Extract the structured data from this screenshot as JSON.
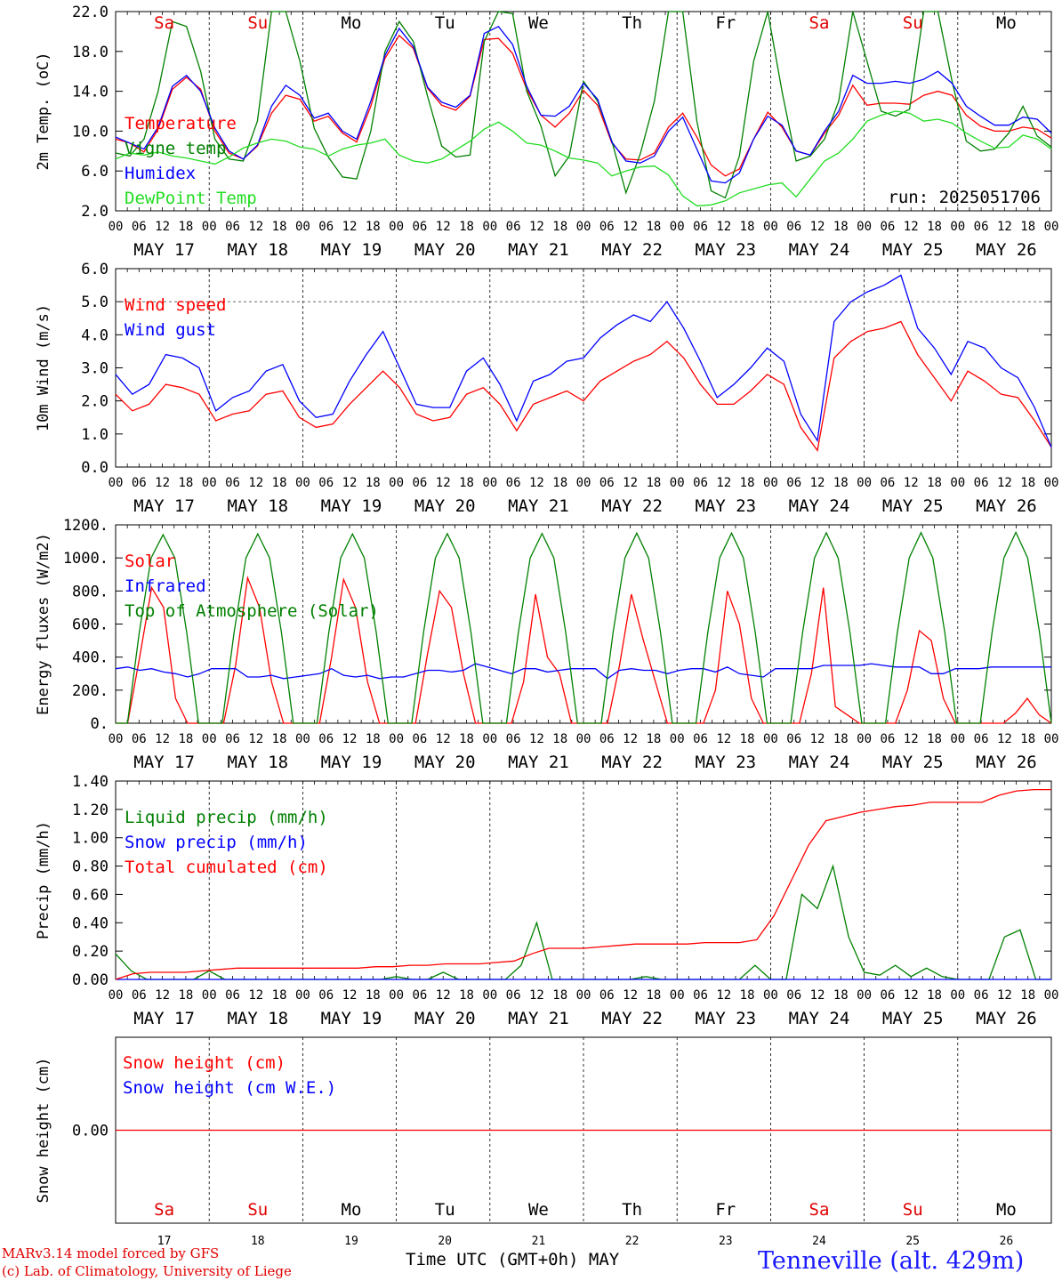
{
  "run_label": "run: 2025051706",
  "day_labels": [
    "MAY 17",
    "MAY 18",
    "MAY 19",
    "MAY 20",
    "MAY 21",
    "MAY 22",
    "MAY 23",
    "MAY 24",
    "MAY 25",
    "MAY 26"
  ],
  "hour_labels": [
    "00",
    "06",
    "12",
    "18"
  ],
  "final_hour_label": "00",
  "weekdays": [
    {
      "name": "Sa",
      "color": "#e00000"
    },
    {
      "name": "Su",
      "color": "#e00000"
    },
    {
      "name": "Mo",
      "color": "#000000"
    },
    {
      "name": "Tu",
      "color": "#000000"
    },
    {
      "name": "We",
      "color": "#000000"
    },
    {
      "name": "Th",
      "color": "#000000"
    },
    {
      "name": "Fr",
      "color": "#000000"
    },
    {
      "name": "Sa",
      "color": "#e00000"
    },
    {
      "name": "Su",
      "color": "#e00000"
    },
    {
      "name": "Mo",
      "color": "#000000"
    }
  ],
  "day_numbers": [
    "17",
    "18",
    "19",
    "20",
    "21",
    "22",
    "23",
    "24",
    "25",
    "26"
  ],
  "xlabel": "Time UTC (GMT+0h)",
  "month_label": "MAY",
  "footer": {
    "model": "MARv3.14 model forced by GFS",
    "credit": "(c) Lab. of Climatology, University of Liege",
    "station": "Tenneville (alt. 429m)"
  },
  "colors": {
    "red": "#ff0000",
    "green": "#008000",
    "blue": "#0000ff",
    "lightgreen": "#22dd22"
  },
  "chart_data": [
    {
      "type": "line",
      "ylabel": "2m Temp. (oC)",
      "ylim": [
        2,
        22
      ],
      "yticks": [
        "2.0",
        "6.0",
        "10.0",
        "14.0",
        "18.0",
        "22.0"
      ],
      "x_hours_step": 6,
      "series": [
        {
          "name": "Temperature",
          "color": "#ff0000",
          "values": [
            9.2,
            8.8,
            7.9,
            10.2,
            14.2,
            15.4,
            14.2,
            10.0,
            7.8,
            7.2,
            8.5,
            11.8,
            13.6,
            13.2,
            11.0,
            11.5,
            9.8,
            8.9,
            12.5,
            17.3,
            19.6,
            18.3,
            14.3,
            12.6,
            12.1,
            13.5,
            19.2,
            19.3,
            17.8,
            14.2,
            11.6,
            10.4,
            11.8,
            14.1,
            12.6,
            8.8,
            7.2,
            7.1,
            7.8,
            10.4,
            11.8,
            9.4,
            6.6,
            5.5,
            6.2,
            9.2,
            11.9,
            10.4,
            8.0,
            7.6,
            9.8,
            11.6,
            14.6,
            12.6,
            12.8,
            12.8,
            12.7,
            13.6,
            14.0,
            13.6,
            11.6,
            10.5,
            10.0,
            10.0,
            10.4,
            10.2,
            9.3
          ]
        },
        {
          "name": "Vigne temp",
          "color": "#008000",
          "values": [
            7.8,
            7.5,
            9.2,
            14.0,
            21.0,
            20.5,
            16.0,
            9.2,
            7.2,
            7.0,
            11.0,
            22.5,
            22.5,
            17.0,
            10.3,
            7.4,
            5.4,
            5.2,
            10.0,
            18.0,
            21.0,
            19.0,
            13.5,
            8.5,
            7.4,
            7.6,
            19.0,
            22.5,
            21.8,
            14.0,
            10.5,
            5.5,
            7.5,
            15.0,
            13.0,
            9.0,
            3.8,
            7.7,
            13.0,
            22.5,
            22.5,
            11.0,
            4.0,
            3.3,
            7.5,
            17.0,
            22.5,
            14.0,
            7.0,
            7.5,
            9.2,
            13.0,
            22.5,
            17.0,
            12.0,
            11.5,
            12.2,
            22.5,
            22.5,
            15.0,
            9.0,
            8.0,
            8.2,
            9.8,
            12.5,
            9.5,
            8.4
          ]
        },
        {
          "name": "Humidex",
          "color": "#0000ff",
          "values": [
            9.4,
            8.8,
            8.2,
            10.4,
            14.5,
            15.6,
            14.0,
            10.3,
            8.0,
            7.2,
            8.6,
            12.5,
            14.6,
            13.6,
            11.3,
            11.8,
            10.0,
            9.2,
            13.0,
            17.6,
            20.3,
            18.5,
            14.4,
            12.9,
            12.4,
            13.6,
            19.8,
            20.5,
            18.7,
            14.5,
            11.6,
            11.5,
            12.5,
            14.8,
            13.2,
            8.9,
            7.0,
            6.8,
            7.5,
            10.0,
            11.4,
            8.2,
            5.0,
            4.8,
            5.8,
            9.2,
            11.5,
            10.6,
            8.0,
            7.6,
            10.0,
            12.0,
            15.6,
            14.8,
            14.8,
            15.0,
            14.8,
            15.2,
            16.0,
            14.8,
            12.5,
            11.5,
            10.6,
            10.6,
            11.4,
            11.2,
            9.8
          ]
        },
        {
          "name": "DewPoint Temp",
          "color": "#22dd22",
          "values": [
            7.2,
            7.8,
            7.6,
            7.9,
            7.5,
            7.3,
            7.0,
            6.7,
            7.4,
            8.3,
            8.8,
            9.2,
            9.0,
            8.4,
            8.2,
            7.5,
            8.2,
            8.6,
            8.8,
            9.2,
            7.6,
            7.0,
            6.8,
            7.2,
            8.1,
            9.0,
            10.2,
            10.9,
            10.0,
            8.8,
            8.6,
            8.0,
            7.3,
            7.1,
            6.8,
            5.5,
            6.0,
            6.4,
            6.5,
            5.6,
            3.5,
            2.5,
            2.6,
            3.0,
            3.8,
            4.2,
            4.6,
            4.8,
            3.4,
            5.2,
            7.0,
            7.8,
            9.2,
            11.0,
            11.6,
            12.0,
            11.8,
            11.0,
            11.2,
            10.8,
            9.8,
            9.0,
            8.3,
            8.4,
            9.6,
            9.2,
            8.2
          ]
        }
      ]
    },
    {
      "type": "line",
      "ylabel": "10m Wind (m/s)",
      "ylim": [
        0,
        6
      ],
      "yticks": [
        "0.0",
        "1.0",
        "2.0",
        "3.0",
        "4.0",
        "5.0",
        "6.0"
      ],
      "reference_line": 5.0,
      "x_hours_step": 6,
      "series": [
        {
          "name": "Wind speed",
          "color": "#ff0000",
          "values": [
            2.2,
            1.7,
            1.9,
            2.5,
            2.4,
            2.2,
            1.4,
            1.6,
            1.7,
            2.2,
            2.3,
            1.5,
            1.2,
            1.3,
            1.9,
            2.4,
            2.9,
            2.4,
            1.6,
            1.4,
            1.5,
            2.2,
            2.4,
            1.9,
            1.1,
            1.9,
            2.1,
            2.3,
            2.0,
            2.6,
            2.9,
            3.2,
            3.4,
            3.8,
            3.3,
            2.5,
            1.9,
            1.9,
            2.3,
            2.8,
            2.5,
            1.2,
            0.5,
            3.3,
            3.8,
            4.1,
            4.2,
            4.4,
            3.4,
            2.7,
            2.0,
            2.9,
            2.6,
            2.2,
            2.1,
            1.4,
            0.6
          ]
        },
        {
          "name": "Wind gust",
          "color": "#0000ff",
          "values": [
            2.8,
            2.2,
            2.5,
            3.4,
            3.3,
            3.0,
            1.7,
            2.1,
            2.3,
            2.9,
            3.1,
            2.0,
            1.5,
            1.6,
            2.6,
            3.4,
            4.1,
            3.0,
            1.9,
            1.8,
            1.8,
            2.9,
            3.3,
            2.5,
            1.4,
            2.6,
            2.8,
            3.2,
            3.3,
            3.9,
            4.3,
            4.6,
            4.4,
            5.0,
            4.2,
            3.2,
            2.1,
            2.5,
            3.0,
            3.6,
            3.2,
            1.6,
            0.8,
            4.4,
            5.0,
            5.3,
            5.5,
            5.8,
            4.2,
            3.6,
            2.8,
            3.8,
            3.6,
            3.0,
            2.7,
            1.8,
            0.6
          ]
        }
      ]
    },
    {
      "type": "line",
      "ylabel": "Energy fluxes (W/m2)",
      "ylim": [
        0,
        1200
      ],
      "yticks": [
        "0.",
        "200.",
        "400.",
        "600.",
        "800.",
        "1000.",
        "1200."
      ],
      "x_hours_step": 3,
      "series": [
        {
          "name": "Solar",
          "color": "#ff0000",
          "values": [
            0,
            0,
            400,
            820,
            700,
            150,
            0,
            0,
            0,
            0,
            350,
            880,
            700,
            250,
            0,
            0,
            0,
            0,
            400,
            870,
            700,
            250,
            0,
            0,
            0,
            0,
            420,
            800,
            700,
            300,
            0,
            0,
            0,
            0,
            250,
            780,
            400,
            300,
            0,
            0,
            0,
            0,
            350,
            780,
            500,
            250,
            0,
            0,
            0,
            0,
            200,
            800,
            600,
            150,
            0,
            0,
            0,
            0,
            300,
            820,
            100,
            50,
            0,
            0,
            0,
            0,
            200,
            560,
            500,
            150,
            0,
            0,
            0,
            0,
            0,
            60,
            150,
            50,
            0
          ]
        },
        {
          "name": "Infrared",
          "color": "#0000ff",
          "values": [
            330,
            340,
            320,
            330,
            310,
            300,
            280,
            300,
            330,
            330,
            330,
            280,
            280,
            290,
            270,
            280,
            290,
            300,
            330,
            290,
            280,
            290,
            270,
            280,
            280,
            300,
            320,
            320,
            310,
            320,
            360,
            340,
            320,
            300,
            330,
            330,
            310,
            320,
            330,
            330,
            330,
            270,
            320,
            330,
            320,
            320,
            300,
            320,
            330,
            330,
            310,
            340,
            300,
            290,
            280,
            330,
            330,
            330,
            330,
            350,
            350,
            350,
            350,
            360,
            350,
            340,
            340,
            340,
            300,
            300,
            330,
            330,
            330,
            340,
            340,
            340,
            340,
            340,
            340
          ]
        },
        {
          "name": "Top of Atmosphere (Solar)",
          "color": "#008000",
          "values": [
            0,
            0,
            550,
            1000,
            1140,
            1000,
            550,
            0,
            0,
            0,
            550,
            1000,
            1145,
            1000,
            550,
            0,
            0,
            0,
            550,
            1000,
            1145,
            1000,
            550,
            0,
            0,
            0,
            550,
            1000,
            1147,
            1000,
            550,
            0,
            0,
            0,
            550,
            1000,
            1148,
            1000,
            550,
            0,
            0,
            0,
            550,
            1000,
            1150,
            1000,
            550,
            0,
            0,
            0,
            550,
            1000,
            1150,
            1000,
            550,
            0,
            0,
            0,
            550,
            1000,
            1152,
            1000,
            550,
            0,
            0,
            0,
            550,
            1000,
            1153,
            1000,
            550,
            0,
            0,
            0,
            550,
            1000,
            1155,
            1000,
            550,
            0
          ]
        }
      ]
    },
    {
      "type": "line",
      "ylabel": "Precip (mm/h)",
      "ylim": [
        0,
        1.4
      ],
      "yticks": [
        "0.00",
        "0.20",
        "0.40",
        "0.60",
        "0.80",
        "1.00",
        "1.20",
        "1.40"
      ],
      "x_hours_step": 6,
      "series": [
        {
          "name": "Liquid precip (mm/h)",
          "color": "#008000",
          "values": [
            0.18,
            0.06,
            0.0,
            0.0,
            0.0,
            0.0,
            0.06,
            0.0,
            0.0,
            0.0,
            0.0,
            0.0,
            0.0,
            0.0,
            0.0,
            0.0,
            0.0,
            0.0,
            0.02,
            0.0,
            0.0,
            0.05,
            0.0,
            0.0,
            0.0,
            0.0,
            0.1,
            0.4,
            0.0,
            0.0,
            0.0,
            0.0,
            0.0,
            0.0,
            0.02,
            0.0,
            0.0,
            0.0,
            0.0,
            0.0,
            0.0,
            0.1,
            0.0,
            0.0,
            0.6,
            0.5,
            0.8,
            0.3,
            0.05,
            0.03,
            0.1,
            0.02,
            0.08,
            0.02,
            0.0,
            0.0,
            0.0,
            0.3,
            0.35,
            0.0,
            0.0
          ]
        },
        {
          "name": "Snow precip (mm/h)",
          "color": "#0000ff",
          "values": [
            0,
            0
          ]
        },
        {
          "name": "Total cumulated (cm)",
          "color": "#ff0000",
          "values": [
            0.0,
            0.04,
            0.05,
            0.05,
            0.05,
            0.06,
            0.07,
            0.08,
            0.08,
            0.08,
            0.08,
            0.08,
            0.08,
            0.08,
            0.08,
            0.09,
            0.09,
            0.1,
            0.1,
            0.11,
            0.11,
            0.11,
            0.12,
            0.13,
            0.18,
            0.22,
            0.22,
            0.22,
            0.23,
            0.24,
            0.25,
            0.25,
            0.25,
            0.25,
            0.26,
            0.26,
            0.26,
            0.28,
            0.45,
            0.7,
            0.95,
            1.12,
            1.15,
            1.18,
            1.2,
            1.22,
            1.23,
            1.25,
            1.25,
            1.25,
            1.25,
            1.3,
            1.33,
            1.34,
            1.34
          ]
        }
      ]
    },
    {
      "type": "line",
      "ylabel": "Snow height (cm)",
      "ylim": [
        -1,
        1
      ],
      "yticks": [
        "0.00"
      ],
      "x_hours_step": 6,
      "series": [
        {
          "name": "Snow height (cm)",
          "color": "#ff0000",
          "values": [
            0,
            0
          ]
        },
        {
          "name": "Snow height (cm W.E.)",
          "color": "#0000ff",
          "values": [
            0,
            0
          ]
        }
      ]
    }
  ]
}
